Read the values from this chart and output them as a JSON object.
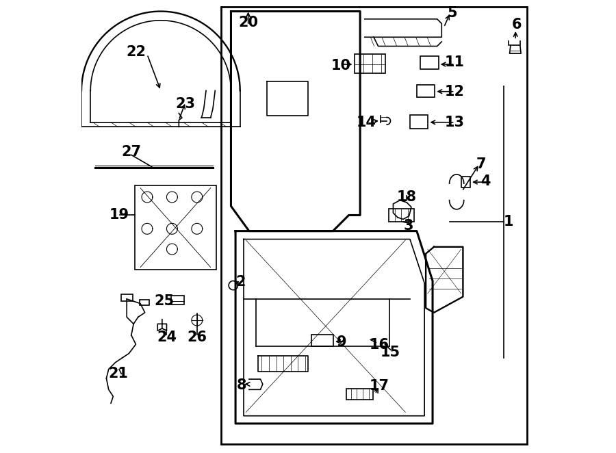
{
  "title": "",
  "background": "#ffffff",
  "border_color": "#000000",
  "line_color": "#000000",
  "text_color": "#000000",
  "font_size_numbers": 15,
  "line_width": 1.2
}
